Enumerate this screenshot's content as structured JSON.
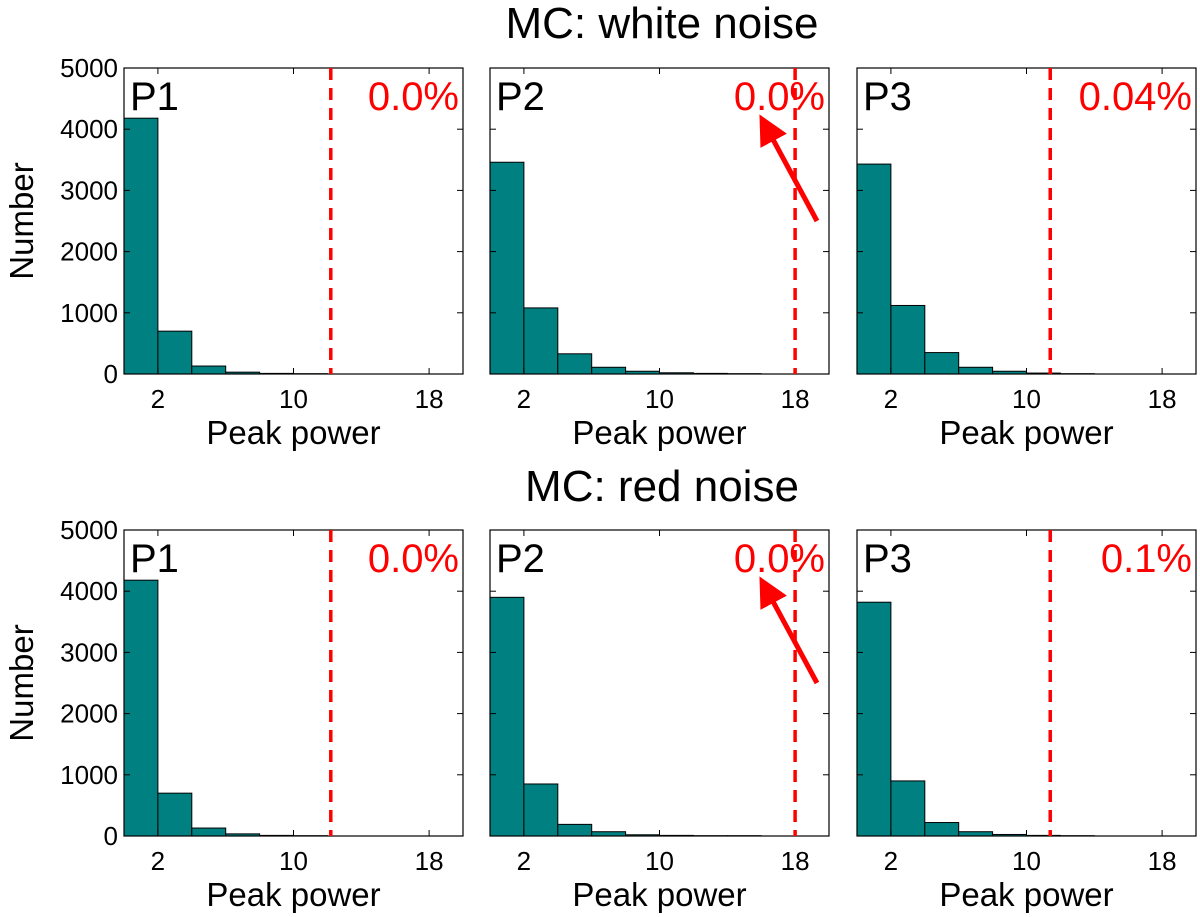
{
  "chart_data": {
    "type": "bar",
    "bar_color": "#008080",
    "marker_color": "#ff0000",
    "xlabel": "Peak power",
    "ylabel": "Number",
    "xlim": [
      0,
      20
    ],
    "ylim": [
      0,
      5000
    ],
    "xticks": [
      2,
      10,
      18
    ],
    "yticks": [
      0,
      1000,
      2000,
      3000,
      4000,
      5000
    ],
    "bin_edges": [
      0,
      2,
      4,
      6,
      8,
      10,
      12,
      14,
      16,
      18,
      20
    ],
    "rows": [
      {
        "title": "MC: white noise",
        "panels": [
          {
            "label": "P1",
            "percent": "0.0%",
            "threshold": 12.2,
            "arrow": false,
            "counts": [
              4180,
              700,
              130,
              30,
              10,
              5,
              0,
              0,
              0,
              0
            ]
          },
          {
            "label": "P2",
            "percent": "0.0%",
            "threshold": 18.0,
            "arrow": true,
            "counts": [
              3460,
              1080,
              330,
              110,
              45,
              20,
              10,
              5,
              0,
              0
            ]
          },
          {
            "label": "P3",
            "percent": "0.04%",
            "threshold": 11.4,
            "arrow": false,
            "counts": [
              3430,
              1120,
              350,
              110,
              45,
              15,
              5,
              0,
              0,
              0
            ]
          }
        ]
      },
      {
        "title": "MC: red noise",
        "panels": [
          {
            "label": "P1",
            "percent": "0.0%",
            "threshold": 12.2,
            "arrow": false,
            "counts": [
              4180,
              700,
              130,
              35,
              10,
              5,
              0,
              0,
              0,
              0
            ]
          },
          {
            "label": "P2",
            "percent": "0.0%",
            "threshold": 18.0,
            "arrow": true,
            "counts": [
              3900,
              850,
              190,
              70,
              20,
              10,
              5,
              5,
              0,
              0
            ]
          },
          {
            "label": "P3",
            "percent": "0.1%",
            "threshold": 11.4,
            "arrow": false,
            "counts": [
              3820,
              900,
              220,
              70,
              25,
              10,
              5,
              0,
              0,
              0
            ]
          }
        ]
      }
    ]
  }
}
